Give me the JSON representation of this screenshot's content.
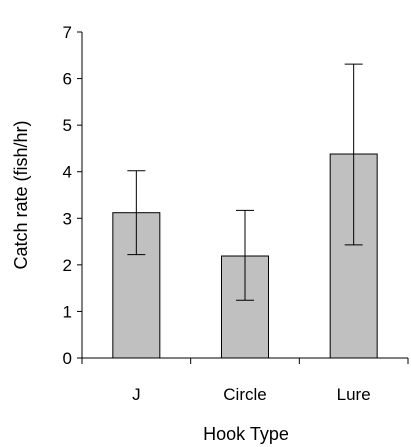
{
  "chart_data": {
    "type": "bar",
    "categories": [
      "J",
      "Circle",
      "Lure"
    ],
    "values": [
      3.12,
      2.19,
      4.38
    ],
    "error_low": [
      2.22,
      1.24,
      2.43
    ],
    "error_high": [
      4.02,
      3.17,
      6.31
    ],
    "xlabel": "Hook Type",
    "ylabel": "Catch rate (fish/hr)",
    "ylim": [
      0,
      7
    ],
    "yticks": [
      "0",
      "1",
      "2",
      "3",
      "4",
      "5",
      "6",
      "7"
    ],
    "grid": false,
    "legend": "none",
    "colors": {
      "bar_fill": "#c0c0c0",
      "bar_stroke": "#000000",
      "axis": "#000000"
    }
  }
}
